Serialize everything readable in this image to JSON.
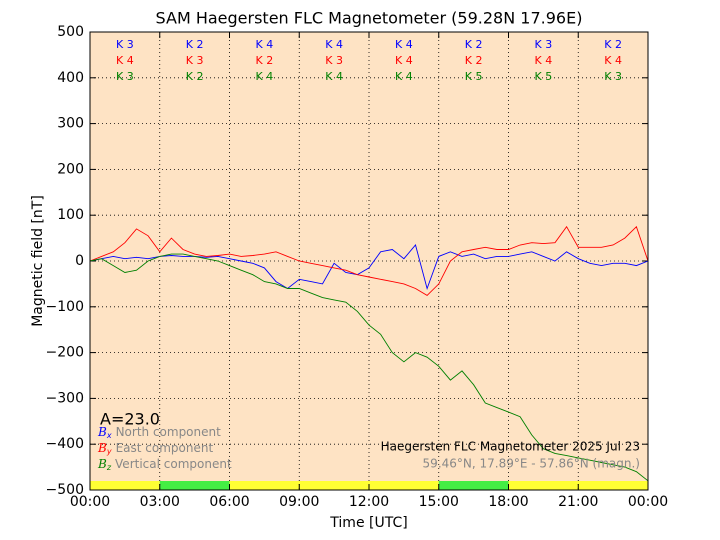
{
  "chart_data": {
    "type": "line",
    "title": "SAM Haegersten FLC Magnetometer (59.28N 17.96E)",
    "x_label": "Time [UTC]",
    "y_label": "Magnetic field [nT]",
    "annotation": "A=23.0",
    "info": [
      "Haegersten FLC Magnetometer 2025 Jul 23",
      "59.46°N, 17.89°E - 57.86°N (magn.)"
    ],
    "background": "#fee3c4",
    "grid": true,
    "legend": "lower left",
    "xlim": [
      0,
      24
    ],
    "xticks": [
      {
        "value": 0,
        "label": "00:00"
      },
      {
        "value": 3,
        "label": "03:00"
      },
      {
        "value": 6,
        "label": "06:00"
      },
      {
        "value": 9,
        "label": "09:00"
      },
      {
        "value": 12,
        "label": "12:00"
      },
      {
        "value": 15,
        "label": "15:00"
      },
      {
        "value": 18,
        "label": "18:00"
      },
      {
        "value": 21,
        "label": "21:00"
      },
      {
        "value": 24,
        "label": "00:00"
      }
    ],
    "ylim": [
      -500,
      500
    ],
    "yticks": [
      {
        "value": -500,
        "label": "−500"
      },
      {
        "value": -400,
        "label": "−400"
      },
      {
        "value": -300,
        "label": "−300"
      },
      {
        "value": -200,
        "label": "−200"
      },
      {
        "value": -100,
        "label": "−100"
      },
      0,
      100,
      200,
      300,
      400,
      500
    ],
    "k_x": [
      1.5,
      4.5,
      7.5,
      10.5,
      13.5,
      16.5,
      19.5,
      22.5
    ],
    "bands": [
      {
        "x": [
          0,
          3
        ],
        "color": "#ffff33"
      },
      {
        "x": [
          3,
          6
        ],
        "color": "#44ee44"
      },
      {
        "x": [
          6,
          15
        ],
        "color": "#ffff33"
      },
      {
        "x": [
          15,
          18
        ],
        "color": "#44ee44"
      },
      {
        "x": [
          18,
          24
        ],
        "color": "#ffff33"
      }
    ],
    "x": [
      0,
      0.5,
      1,
      1.5,
      2,
      2.5,
      3,
      3.5,
      4,
      4.5,
      5,
      5.5,
      6,
      6.5,
      7,
      7.5,
      8,
      8.5,
      9,
      9.5,
      10,
      10.5,
      11,
      11.5,
      12,
      12.5,
      13,
      13.5,
      14,
      14.5,
      15,
      15.5,
      16,
      16.5,
      17,
      17.5,
      18,
      18.5,
      19,
      19.5,
      20,
      20.5,
      21,
      21.5,
      22,
      22.5,
      23,
      23.5,
      24
    ],
    "series": [
      {
        "name": "North component",
        "symbol": "B",
        "subscript": "x",
        "color": "#0000ff",
        "k_labels": [
          "K 3",
          "K 2",
          "K 4",
          "K 4",
          "K 4",
          "K 2",
          "K 3",
          "K 2"
        ],
        "values": [
          0,
          5,
          10,
          5,
          8,
          5,
          10,
          12,
          10,
          10,
          8,
          10,
          5,
          0,
          -5,
          -15,
          -45,
          -60,
          -40,
          -45,
          -50,
          -5,
          -25,
          -30,
          -15,
          20,
          25,
          5,
          35,
          -60,
          10,
          20,
          10,
          15,
          5,
          10,
          10,
          15,
          20,
          10,
          0,
          20,
          5,
          -5,
          -10,
          -5,
          -5,
          -10,
          0
        ]
      },
      {
        "name": "East component",
        "symbol": "B",
        "subscript": "y",
        "color": "#ff0000",
        "k_labels": [
          "K 4",
          "K 3",
          "K 2",
          "K 3",
          "K 4",
          "K 2",
          "K 4",
          "K 4"
        ],
        "values": [
          0,
          10,
          20,
          40,
          70,
          55,
          20,
          50,
          25,
          15,
          10,
          12,
          15,
          10,
          12,
          15,
          20,
          10,
          0,
          -5,
          -10,
          -15,
          -20,
          -30,
          -35,
          -40,
          -45,
          -50,
          -60,
          -75,
          -50,
          0,
          20,
          25,
          30,
          25,
          25,
          35,
          40,
          38,
          40,
          75,
          30,
          30,
          30,
          35,
          50,
          75,
          0
        ]
      },
      {
        "name": "Vertical component",
        "symbol": "B",
        "subscript": "z",
        "color": "#008000",
        "k_labels": [
          "K 3",
          "K 2",
          "K 4",
          "K 4",
          "K 4",
          "K 5",
          "K 5",
          "K 3"
        ],
        "values": [
          0,
          5,
          -10,
          -25,
          -20,
          0,
          10,
          15,
          15,
          10,
          5,
          0,
          -10,
          -20,
          -30,
          -45,
          -50,
          -60,
          -60,
          -70,
          -80,
          -85,
          -90,
          -110,
          -140,
          -160,
          -200,
          -220,
          -200,
          -210,
          -230,
          -260,
          -240,
          -270,
          -310,
          -320,
          -330,
          -340,
          -380,
          -410,
          -420,
          -425,
          -430,
          -435,
          -440,
          -445,
          -450,
          -460,
          -480
        ]
      }
    ]
  }
}
